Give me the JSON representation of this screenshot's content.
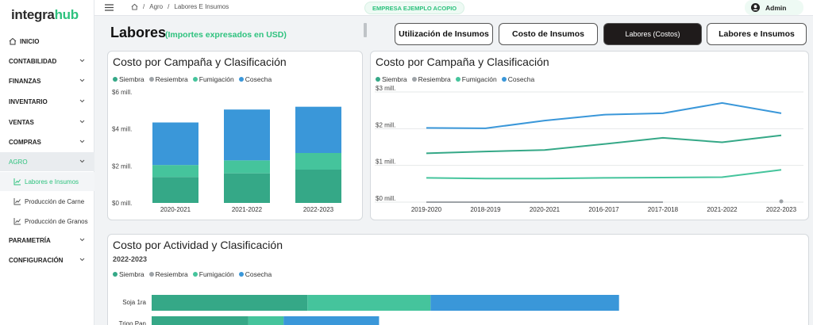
{
  "app": {
    "logo_main": "integra",
    "logo_accent": "hub"
  },
  "sidebar": {
    "items": [
      {
        "label": "INICIO"
      },
      {
        "label": "CONTABILIDAD"
      },
      {
        "label": "FINANZAS"
      },
      {
        "label": "INVENTARIO"
      },
      {
        "label": "VENTAS"
      },
      {
        "label": "COMPRAS"
      },
      {
        "label": "AGRO"
      },
      {
        "label": "PARAMETRÍA"
      },
      {
        "label": "CONFIGURACIÓN"
      }
    ],
    "sub_items": [
      {
        "label": "Labores e Insumos"
      },
      {
        "label": "Producción de Carne"
      },
      {
        "label": "Producción de Granos"
      }
    ]
  },
  "topbar": {
    "breadcrumb": [
      "Agro",
      "Labores E Insumos"
    ],
    "company": "EMPRESA EJEMPLO ACOPIO",
    "user": "Admin"
  },
  "header": {
    "title": "Labores",
    "subtitle": "(Importes expresados en USD)"
  },
  "tabs": [
    {
      "label": "Utilización de Insumos"
    },
    {
      "label": "Costo de Insumos"
    },
    {
      "label": "Labores (Costos)"
    },
    {
      "label": "Labores e Insumos"
    }
  ],
  "colors": {
    "siembra": "#35a887",
    "resiembra": "#9ea3a7",
    "fumigacion": "#45c49c",
    "cosecha": "#3a97d9",
    "accent": "#2ec27e"
  },
  "chart_data": [
    {
      "type": "bar",
      "stacked": true,
      "title": "Costo por Campaña y Clasificación",
      "legend": [
        "Siembra",
        "Resiembra",
        "Fumigación",
        "Cosecha"
      ],
      "categories": [
        "2020-2021",
        "2021-2022",
        "2022-2023"
      ],
      "series": [
        {
          "name": "Siembra",
          "values": [
            1.4,
            1.6,
            1.8
          ]
        },
        {
          "name": "Resiembra",
          "values": [
            0,
            0,
            0
          ]
        },
        {
          "name": "Fumigación",
          "values": [
            0.65,
            0.7,
            0.9
          ]
        },
        {
          "name": "Cosecha",
          "values": [
            2.3,
            2.75,
            2.5
          ]
        }
      ],
      "yticks": [
        "$0 mill.",
        "$2 mill.",
        "$4 mill.",
        "$6 mill."
      ],
      "ylim": [
        0,
        6
      ],
      "grid": false
    },
    {
      "type": "line",
      "title": "Costo por Campaña y Clasificación",
      "legend": [
        "Siembra",
        "Resiembra",
        "Fumigación",
        "Cosecha"
      ],
      "categories": [
        "2019-2020",
        "2018-2019",
        "2020-2021",
        "2016-2017",
        "2017-2018",
        "2021-2022",
        "2022-2023"
      ],
      "series": [
        {
          "name": "Siembra",
          "values": [
            1.33,
            1.38,
            1.42,
            1.58,
            1.75,
            1.63,
            1.82
          ]
        },
        {
          "name": "Resiembra",
          "values": [
            0.0,
            0.0,
            0.0,
            0.0,
            0.0,
            null,
            0.0
          ]
        },
        {
          "name": "Fumigación",
          "values": [
            0.66,
            0.64,
            0.64,
            0.66,
            0.67,
            0.68,
            0.88
          ]
        },
        {
          "name": "Cosecha",
          "values": [
            2.02,
            2.01,
            2.22,
            2.38,
            2.42,
            2.7,
            2.42
          ]
        }
      ],
      "yticks": [
        "$0 mill.",
        "$1 mill.",
        "$2 mill.",
        "$3 mill."
      ],
      "ylim": [
        0,
        3
      ],
      "grid": true
    },
    {
      "type": "bar",
      "orientation": "horizontal",
      "stacked": true,
      "title": "Costo por Actividad y Clasificación",
      "subtitle": "2022-2023",
      "legend": [
        "Siembra",
        "Resiembra",
        "Fumigación",
        "Cosecha"
      ],
      "categories": [
        "Soja 1ra",
        "Trigo Pan"
      ],
      "series": [
        {
          "name": "Siembra",
          "values": [
            620,
            385
          ]
        },
        {
          "name": "Resiembra",
          "values": [
            0,
            0
          ]
        },
        {
          "name": "Fumigación",
          "values": [
            490,
            140
          ]
        },
        {
          "name": "Cosecha",
          "values": [
            750,
            380
          ]
        }
      ]
    }
  ]
}
